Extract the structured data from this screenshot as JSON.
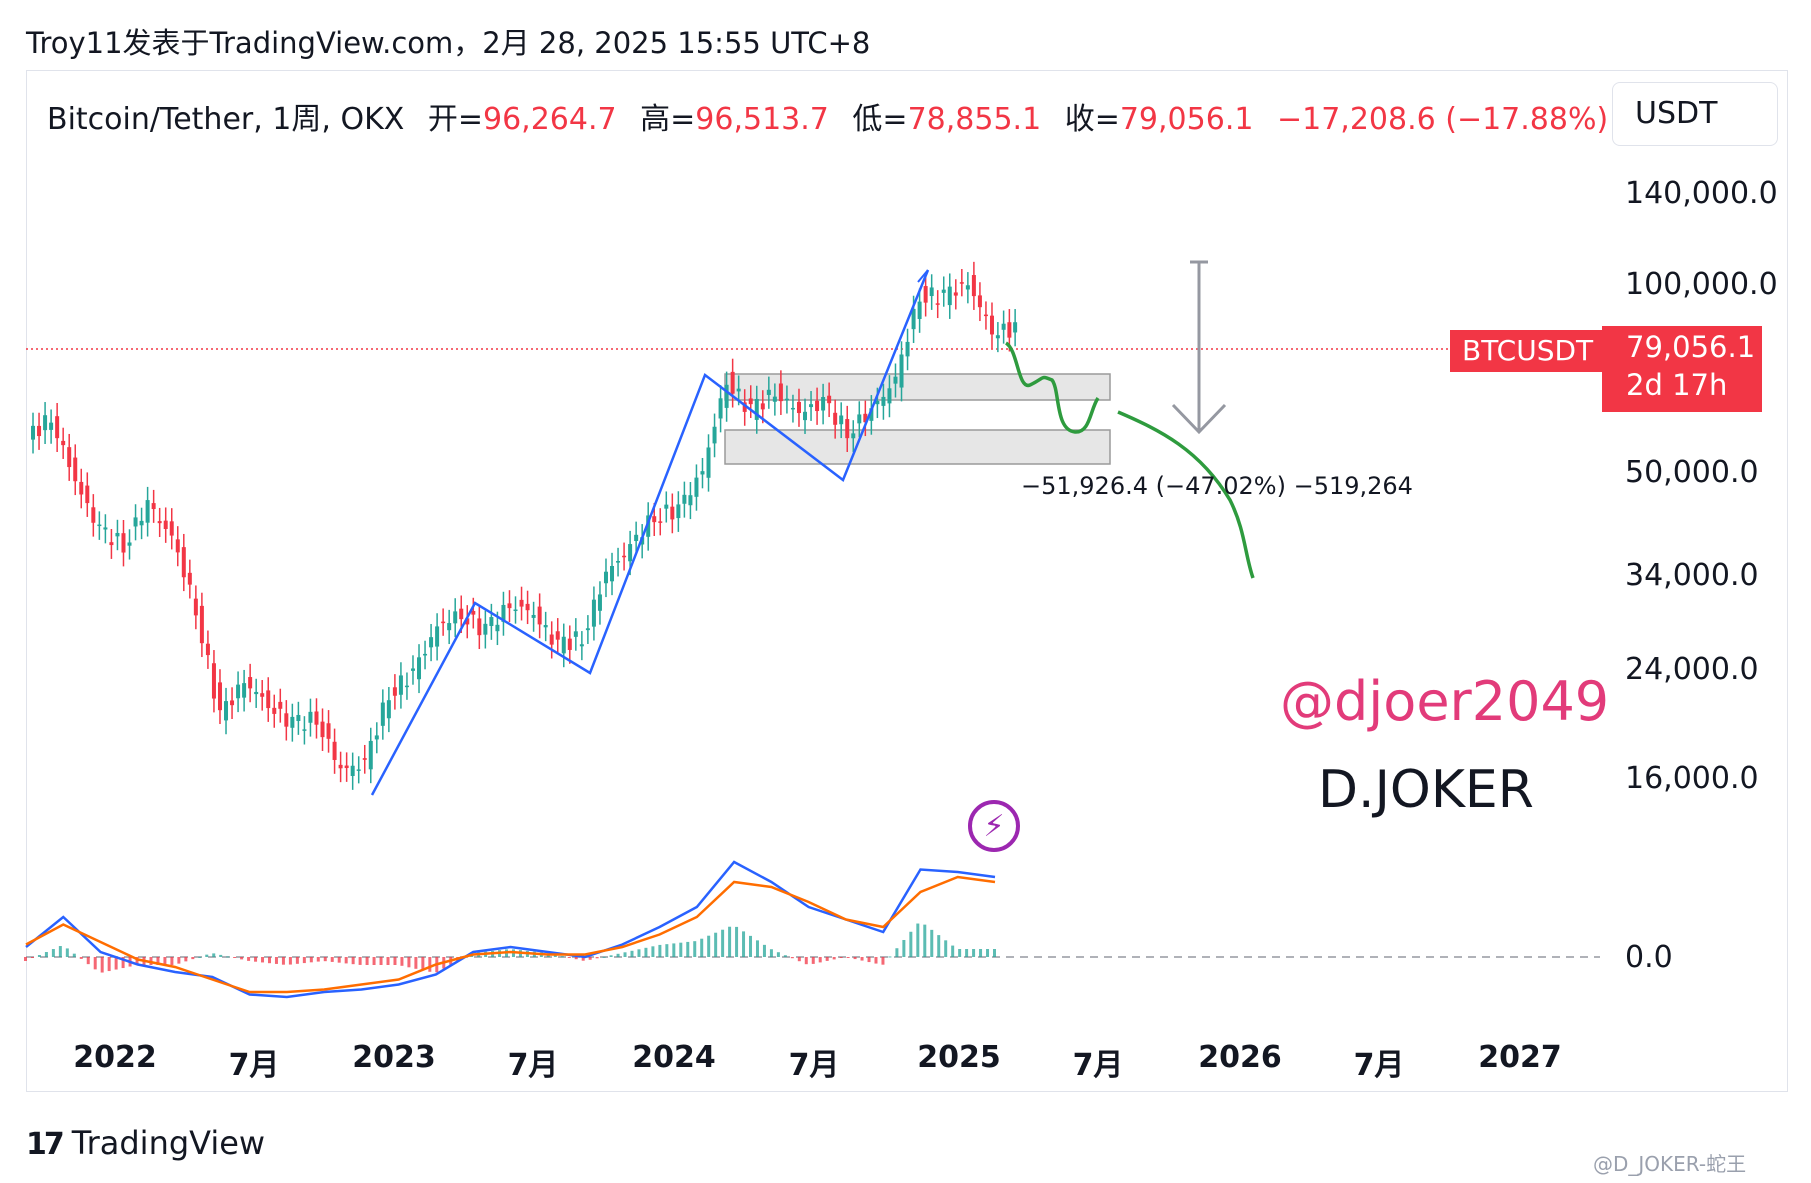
{
  "header": {
    "publish_line": "Troy11发表于TradingView.com，2月 28, 2025 15:55 UTC+8"
  },
  "legend": {
    "symbol_line": "Bitcoin/Tether, 1周, OKX",
    "open_label": "开=",
    "open_value": "96,264.7",
    "high_label": "高=",
    "high_value": "96,513.7",
    "low_label": "低=",
    "low_value": "78,855.1",
    "close_label": "收=",
    "close_value": "79,056.1",
    "change": "−17,208.6 (−17.88%)"
  },
  "currency": "USDT",
  "price_tag": {
    "symbol": "BTCUSDT",
    "price": "79,056.1",
    "countdown": "2d 17h"
  },
  "measure_label": "−51,926.4 (−47.02%) −519,264",
  "annotations": {
    "handle": "@djoer2049",
    "author": "D.JOKER"
  },
  "footer": {
    "brand": "TradingView",
    "watermark": "@D_JOKER-蛇王"
  },
  "colors": {
    "up": "#26a69a",
    "down": "#f23645",
    "drawing_blue": "#2962ff",
    "drawing_green": "#2e9b3e",
    "macd": "#2962ff",
    "signal": "#ff6d00",
    "box_fill": "#e8e8e8"
  },
  "icons": [
    "tradingview-logo-icon",
    "lightning-icon"
  ],
  "chart_data": {
    "type": "line",
    "title": "Bitcoin/Tether, 1周, OKX",
    "y_scale": "log",
    "y_ticks": [
      {
        "label": "140,000.0",
        "value": 140000
      },
      {
        "label": "100,000.0",
        "value": 100000
      },
      {
        "label": "50,000.0",
        "value": 50000
      },
      {
        "label": "34,000.0",
        "value": 34000
      },
      {
        "label": "24,000.0",
        "value": 24000
      },
      {
        "label": "16,000.0",
        "value": 16000
      }
    ],
    "x_ticks": [
      "2022",
      "7月",
      "2023",
      "7月",
      "2024",
      "7月",
      "2025",
      "7月",
      "2026",
      "7月",
      "2027"
    ],
    "x_tick_dates": [
      "2022-01",
      "2022-07",
      "2023-01",
      "2023-07",
      "2024-01",
      "2024-07",
      "2025-01",
      "2025-07",
      "2026-01",
      "2026-07",
      "2027-01"
    ],
    "series": [
      {
        "x": [
          "2021-10",
          "2021-11",
          "2021-12",
          "2022-01",
          "2022-02",
          "2022-03",
          "2022-04",
          "2022-05",
          "2022-06",
          "2022-07",
          "2022-08",
          "2022-09",
          "2022-10",
          "2022-11",
          "2022-12",
          "2023-01",
          "2023-02",
          "2023-03",
          "2023-04",
          "2023-05",
          "2023-06",
          "2023-07",
          "2023-08",
          "2023-09",
          "2023-10",
          "2023-11",
          "2023-12",
          "2024-01",
          "2024-02",
          "2024-03",
          "2024-04",
          "2024-05",
          "2024-06",
          "2024-07",
          "2024-08",
          "2024-09",
          "2024-10",
          "2024-11",
          "2024-12",
          "2025-01",
          "2025-02"
        ],
        "values": [
          56000,
          61000,
          48000,
          40000,
          38000,
          44000,
          39000,
          30000,
          20000,
          23000,
          21000,
          19500,
          20000,
          16500,
          16800,
          22000,
          23500,
          28000,
          29500,
          27500,
          30500,
          29500,
          26000,
          27000,
          34000,
          37500,
          42500,
          43000,
          50000,
          70000,
          62000,
          67000,
          62000,
          64000,
          58000,
          62000,
          70000,
          96000,
          95000,
          100000,
          84000
        ]
      }
    ],
    "macd": {
      "zero_label": "0.0",
      "series": [
        {
          "values": [
            0.4,
            1.6,
            0.2,
            -0.3,
            -0.6,
            -0.8,
            -1.5,
            -1.6,
            -1.4,
            -1.3,
            -1.1,
            -0.7,
            0.2,
            0.4,
            0.2,
            0.0,
            0.5,
            1.2,
            2.0,
            3.8,
            3.0,
            2.0,
            1.5,
            1.0,
            3.5,
            3.4,
            3.2
          ]
        },
        {
          "values": [
            0.5,
            1.3,
            0.6,
            -0.1,
            -0.4,
            -0.9,
            -1.4,
            -1.4,
            -1.3,
            -1.1,
            -0.9,
            -0.3,
            0.1,
            0.2,
            0.1,
            0.1,
            0.4,
            0.9,
            1.6,
            3.0,
            2.8,
            2.2,
            1.5,
            1.2,
            2.6,
            3.2,
            3.0
          ]
        }
      ]
    }
  }
}
